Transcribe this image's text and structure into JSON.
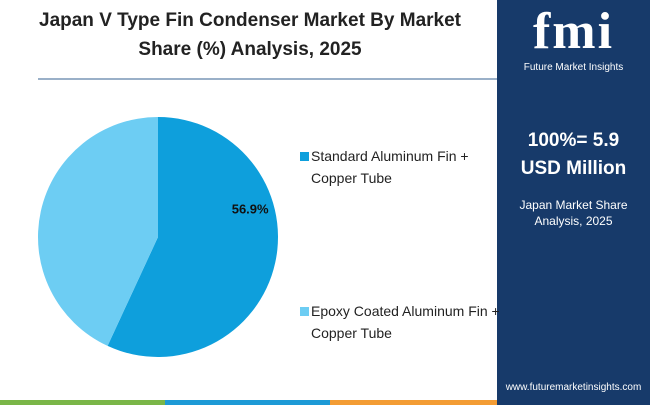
{
  "chart_data": {
    "type": "pie",
    "title": "Japan V Type Fin Condenser Market By Market Share (%) Analysis, 2025",
    "categories": [
      "Standard Aluminum Fin + Copper Tube",
      "Epoxy Coated Aluminum Fin + Copper Tube"
    ],
    "values": [
      56.9,
      43.1
    ],
    "value_labels": [
      "56.9%",
      null
    ],
    "colors": [
      "#0e9fdc",
      "#6dcdf3"
    ]
  },
  "panel": {
    "logo": "fmi",
    "logo_subtitle": "Future Market Insights",
    "total_line1": "100%= 5.9",
    "total_line2": "USD Million",
    "caption": "Japan Market Share Analysis, 2025",
    "website": "www.futuremarketinsights.com"
  }
}
